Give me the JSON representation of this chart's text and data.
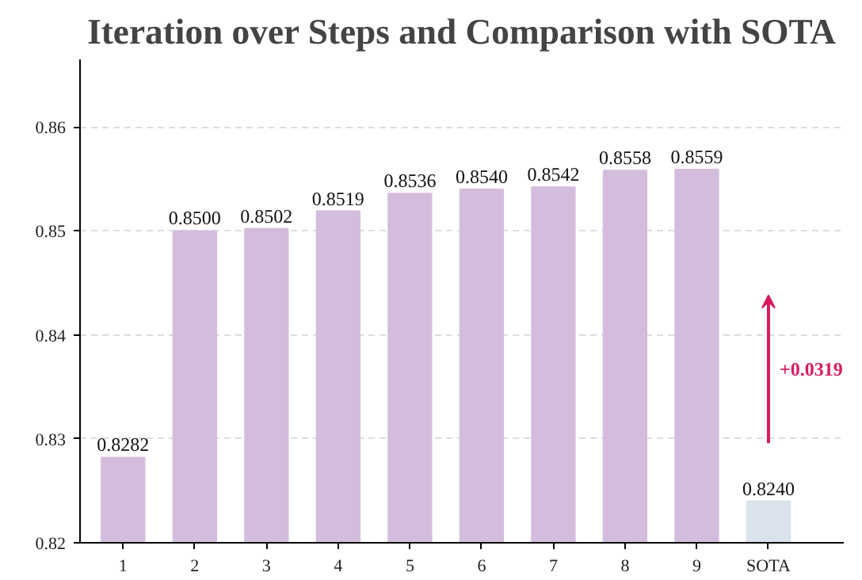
{
  "chart_data": {
    "type": "bar",
    "title": "Iteration over Steps and Comparison with SOTA",
    "categories": [
      "1",
      "2",
      "3",
      "4",
      "5",
      "6",
      "7",
      "8",
      "9",
      "SOTA"
    ],
    "values": [
      0.8282,
      0.85,
      0.8502,
      0.8519,
      0.8536,
      0.854,
      0.8542,
      0.8558,
      0.8559,
      0.824
    ],
    "colors": [
      "#d4bddc",
      "#d4bddc",
      "#d4bddc",
      "#d4bddc",
      "#d4bddc",
      "#d4bddc",
      "#d4bddc",
      "#d4bddc",
      "#d4bddc",
      "#dae2ed"
    ],
    "ylim": [
      0.82,
      0.8665
    ],
    "yticks": [
      0.82,
      0.83,
      0.84,
      0.85,
      0.86
    ],
    "grid": "y",
    "value_labels": [
      "0.8282",
      "0.8500",
      "0.8502",
      "0.8519",
      "0.8536",
      "0.8540",
      "0.8542",
      "0.8558",
      "0.8559",
      "0.8240"
    ],
    "annotations": [
      "+0.0319"
    ]
  }
}
